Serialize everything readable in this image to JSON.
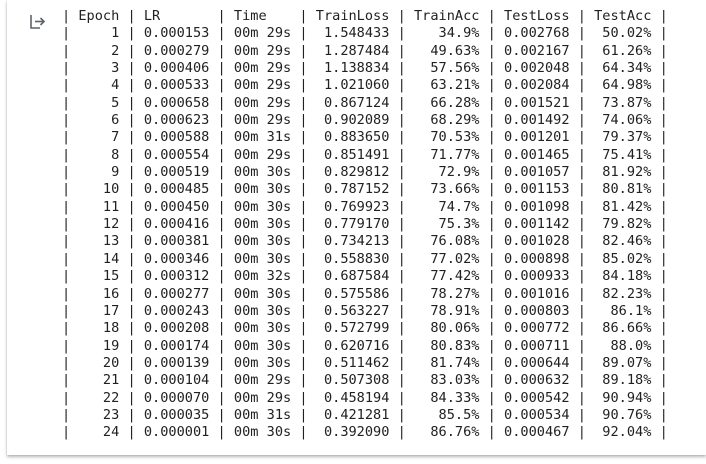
{
  "output": {
    "icon": "output-redirect-icon",
    "columns": [
      "Epoch",
      "LR",
      "Time",
      "TrainLoss",
      "TrainAcc",
      "TestLoss",
      "TestAcc"
    ],
    "rows": [
      [
        "1",
        "0.000153",
        "00m 29s",
        "1.548433",
        "34.9%",
        "0.002768",
        "50.02%"
      ],
      [
        "2",
        "0.000279",
        "00m 29s",
        "1.287484",
        "49.63%",
        "0.002167",
        "61.26%"
      ],
      [
        "3",
        "0.000406",
        "00m 29s",
        "1.138834",
        "57.56%",
        "0.002048",
        "64.34%"
      ],
      [
        "4",
        "0.000533",
        "00m 29s",
        "1.021060",
        "63.21%",
        "0.002084",
        "64.98%"
      ],
      [
        "5",
        "0.000658",
        "00m 29s",
        "0.867124",
        "66.28%",
        "0.001521",
        "73.87%"
      ],
      [
        "6",
        "0.000623",
        "00m 29s",
        "0.902089",
        "68.29%",
        "0.001492",
        "74.06%"
      ],
      [
        "7",
        "0.000588",
        "00m 31s",
        "0.883650",
        "70.53%",
        "0.001201",
        "79.37%"
      ],
      [
        "8",
        "0.000554",
        "00m 29s",
        "0.851491",
        "71.77%",
        "0.001465",
        "75.41%"
      ],
      [
        "9",
        "0.000519",
        "00m 30s",
        "0.829812",
        "72.9%",
        "0.001057",
        "81.92%"
      ],
      [
        "10",
        "0.000485",
        "00m 30s",
        "0.787152",
        "73.66%",
        "0.001153",
        "80.81%"
      ],
      [
        "11",
        "0.000450",
        "00m 30s",
        "0.769923",
        "74.7%",
        "0.001098",
        "81.42%"
      ],
      [
        "12",
        "0.000416",
        "00m 30s",
        "0.779170",
        "75.3%",
        "0.001142",
        "79.82%"
      ],
      [
        "13",
        "0.000381",
        "00m 30s",
        "0.734213",
        "76.08%",
        "0.001028",
        "82.46%"
      ],
      [
        "14",
        "0.000346",
        "00m 30s",
        "0.558830",
        "77.02%",
        "0.000898",
        "85.02%"
      ],
      [
        "15",
        "0.000312",
        "00m 32s",
        "0.687584",
        "77.42%",
        "0.000933",
        "84.18%"
      ],
      [
        "16",
        "0.000277",
        "00m 30s",
        "0.575586",
        "78.27%",
        "0.001016",
        "82.23%"
      ],
      [
        "17",
        "0.000243",
        "00m 30s",
        "0.563227",
        "78.91%",
        "0.000803",
        "86.1%"
      ],
      [
        "18",
        "0.000208",
        "00m 30s",
        "0.572799",
        "80.06%",
        "0.000772",
        "86.66%"
      ],
      [
        "19",
        "0.000174",
        "00m 30s",
        "0.620716",
        "80.83%",
        "0.000711",
        "88.0%"
      ],
      [
        "20",
        "0.000139",
        "00m 30s",
        "0.511462",
        "81.74%",
        "0.000644",
        "89.07%"
      ],
      [
        "21",
        "0.000104",
        "00m 29s",
        "0.507308",
        "83.03%",
        "0.000632",
        "89.18%"
      ],
      [
        "22",
        "0.000070",
        "00m 29s",
        "0.458194",
        "84.33%",
        "0.000542",
        "90.94%"
      ],
      [
        "23",
        "0.000035",
        "00m 31s",
        "0.421281",
        "85.5%",
        "0.000534",
        "90.76%"
      ],
      [
        "24",
        "0.000001",
        "00m 30s",
        "0.392090",
        "86.76%",
        "0.000467",
        "92.04%"
      ]
    ]
  }
}
